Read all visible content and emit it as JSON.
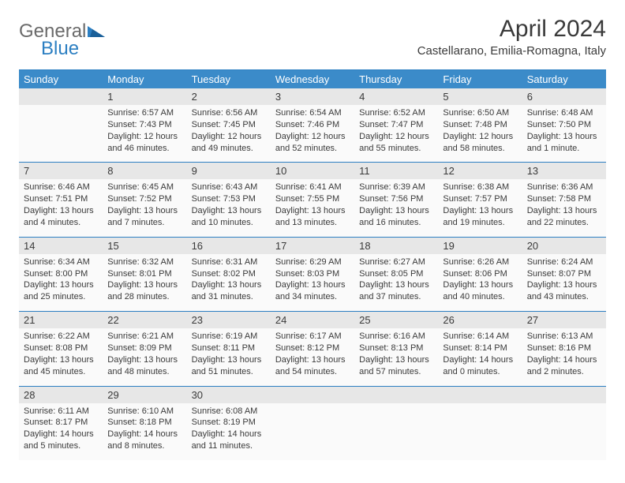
{
  "logo": {
    "gray": "General",
    "blue": "Blue"
  },
  "title": "April 2024",
  "location": "Castellarano, Emilia-Romagna, Italy",
  "colors": {
    "header_bg": "#3b8bc9",
    "daynum_bg": "#e7e7e7",
    "cell_bg": "#fafafa",
    "divider": "#2c7fc2",
    "text": "#3a3a3a",
    "logo_gray": "#6a6a6a",
    "logo_blue": "#2c7fc2"
  },
  "weekdays": [
    "Sunday",
    "Monday",
    "Tuesday",
    "Wednesday",
    "Thursday",
    "Friday",
    "Saturday"
  ],
  "weeks": [
    {
      "nums": [
        "",
        "1",
        "2",
        "3",
        "4",
        "5",
        "6"
      ],
      "cells": [
        {
          "sunrise": "",
          "sunset": "",
          "daylight": ""
        },
        {
          "sunrise": "Sunrise: 6:57 AM",
          "sunset": "Sunset: 7:43 PM",
          "daylight": "Daylight: 12 hours and 46 minutes."
        },
        {
          "sunrise": "Sunrise: 6:56 AM",
          "sunset": "Sunset: 7:45 PM",
          "daylight": "Daylight: 12 hours and 49 minutes."
        },
        {
          "sunrise": "Sunrise: 6:54 AM",
          "sunset": "Sunset: 7:46 PM",
          "daylight": "Daylight: 12 hours and 52 minutes."
        },
        {
          "sunrise": "Sunrise: 6:52 AM",
          "sunset": "Sunset: 7:47 PM",
          "daylight": "Daylight: 12 hours and 55 minutes."
        },
        {
          "sunrise": "Sunrise: 6:50 AM",
          "sunset": "Sunset: 7:48 PM",
          "daylight": "Daylight: 12 hours and 58 minutes."
        },
        {
          "sunrise": "Sunrise: 6:48 AM",
          "sunset": "Sunset: 7:50 PM",
          "daylight": "Daylight: 13 hours and 1 minute."
        }
      ]
    },
    {
      "nums": [
        "7",
        "8",
        "9",
        "10",
        "11",
        "12",
        "13"
      ],
      "cells": [
        {
          "sunrise": "Sunrise: 6:46 AM",
          "sunset": "Sunset: 7:51 PM",
          "daylight": "Daylight: 13 hours and 4 minutes."
        },
        {
          "sunrise": "Sunrise: 6:45 AM",
          "sunset": "Sunset: 7:52 PM",
          "daylight": "Daylight: 13 hours and 7 minutes."
        },
        {
          "sunrise": "Sunrise: 6:43 AM",
          "sunset": "Sunset: 7:53 PM",
          "daylight": "Daylight: 13 hours and 10 minutes."
        },
        {
          "sunrise": "Sunrise: 6:41 AM",
          "sunset": "Sunset: 7:55 PM",
          "daylight": "Daylight: 13 hours and 13 minutes."
        },
        {
          "sunrise": "Sunrise: 6:39 AM",
          "sunset": "Sunset: 7:56 PM",
          "daylight": "Daylight: 13 hours and 16 minutes."
        },
        {
          "sunrise": "Sunrise: 6:38 AM",
          "sunset": "Sunset: 7:57 PM",
          "daylight": "Daylight: 13 hours and 19 minutes."
        },
        {
          "sunrise": "Sunrise: 6:36 AM",
          "sunset": "Sunset: 7:58 PM",
          "daylight": "Daylight: 13 hours and 22 minutes."
        }
      ]
    },
    {
      "nums": [
        "14",
        "15",
        "16",
        "17",
        "18",
        "19",
        "20"
      ],
      "cells": [
        {
          "sunrise": "Sunrise: 6:34 AM",
          "sunset": "Sunset: 8:00 PM",
          "daylight": "Daylight: 13 hours and 25 minutes."
        },
        {
          "sunrise": "Sunrise: 6:32 AM",
          "sunset": "Sunset: 8:01 PM",
          "daylight": "Daylight: 13 hours and 28 minutes."
        },
        {
          "sunrise": "Sunrise: 6:31 AM",
          "sunset": "Sunset: 8:02 PM",
          "daylight": "Daylight: 13 hours and 31 minutes."
        },
        {
          "sunrise": "Sunrise: 6:29 AM",
          "sunset": "Sunset: 8:03 PM",
          "daylight": "Daylight: 13 hours and 34 minutes."
        },
        {
          "sunrise": "Sunrise: 6:27 AM",
          "sunset": "Sunset: 8:05 PM",
          "daylight": "Daylight: 13 hours and 37 minutes."
        },
        {
          "sunrise": "Sunrise: 6:26 AM",
          "sunset": "Sunset: 8:06 PM",
          "daylight": "Daylight: 13 hours and 40 minutes."
        },
        {
          "sunrise": "Sunrise: 6:24 AM",
          "sunset": "Sunset: 8:07 PM",
          "daylight": "Daylight: 13 hours and 43 minutes."
        }
      ]
    },
    {
      "nums": [
        "21",
        "22",
        "23",
        "24",
        "25",
        "26",
        "27"
      ],
      "cells": [
        {
          "sunrise": "Sunrise: 6:22 AM",
          "sunset": "Sunset: 8:08 PM",
          "daylight": "Daylight: 13 hours and 45 minutes."
        },
        {
          "sunrise": "Sunrise: 6:21 AM",
          "sunset": "Sunset: 8:09 PM",
          "daylight": "Daylight: 13 hours and 48 minutes."
        },
        {
          "sunrise": "Sunrise: 6:19 AM",
          "sunset": "Sunset: 8:11 PM",
          "daylight": "Daylight: 13 hours and 51 minutes."
        },
        {
          "sunrise": "Sunrise: 6:17 AM",
          "sunset": "Sunset: 8:12 PM",
          "daylight": "Daylight: 13 hours and 54 minutes."
        },
        {
          "sunrise": "Sunrise: 6:16 AM",
          "sunset": "Sunset: 8:13 PM",
          "daylight": "Daylight: 13 hours and 57 minutes."
        },
        {
          "sunrise": "Sunrise: 6:14 AM",
          "sunset": "Sunset: 8:14 PM",
          "daylight": "Daylight: 14 hours and 0 minutes."
        },
        {
          "sunrise": "Sunrise: 6:13 AM",
          "sunset": "Sunset: 8:16 PM",
          "daylight": "Daylight: 14 hours and 2 minutes."
        }
      ]
    },
    {
      "nums": [
        "28",
        "29",
        "30",
        "",
        "",
        "",
        ""
      ],
      "cells": [
        {
          "sunrise": "Sunrise: 6:11 AM",
          "sunset": "Sunset: 8:17 PM",
          "daylight": "Daylight: 14 hours and 5 minutes."
        },
        {
          "sunrise": "Sunrise: 6:10 AM",
          "sunset": "Sunset: 8:18 PM",
          "daylight": "Daylight: 14 hours and 8 minutes."
        },
        {
          "sunrise": "Sunrise: 6:08 AM",
          "sunset": "Sunset: 8:19 PM",
          "daylight": "Daylight: 14 hours and 11 minutes."
        },
        {
          "sunrise": "",
          "sunset": "",
          "daylight": ""
        },
        {
          "sunrise": "",
          "sunset": "",
          "daylight": ""
        },
        {
          "sunrise": "",
          "sunset": "",
          "daylight": ""
        },
        {
          "sunrise": "",
          "sunset": "",
          "daylight": ""
        }
      ]
    }
  ]
}
